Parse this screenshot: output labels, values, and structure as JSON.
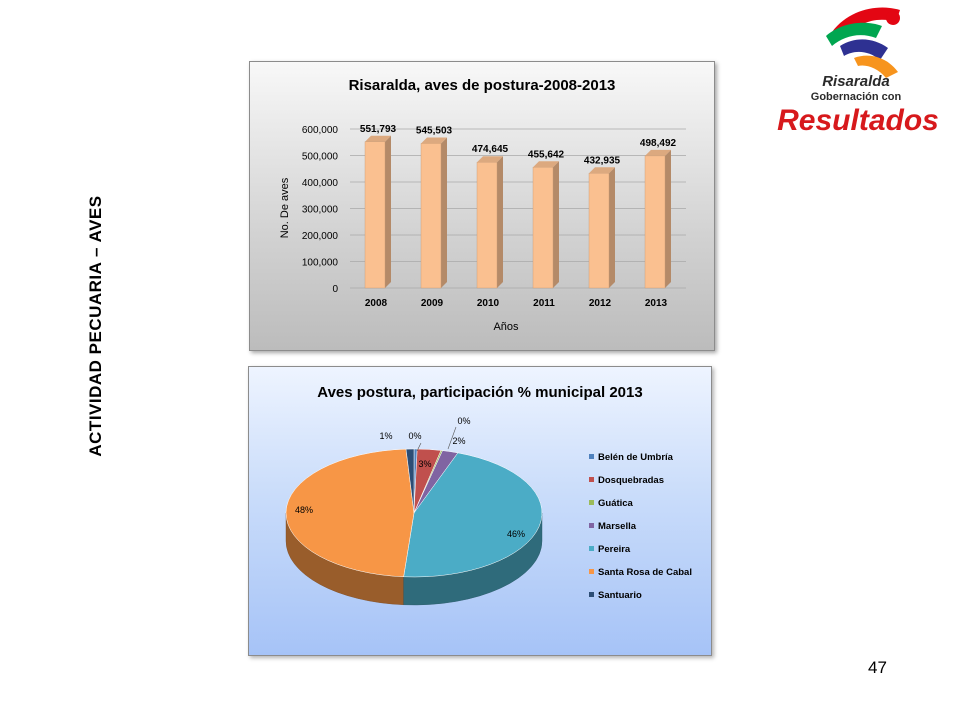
{
  "slide": {
    "vertical_title": "ACTIVIDAD PECUARIA – AVES",
    "page_number": "47",
    "logo": {
      "line1": "Risaralda",
      "line2": "Gobernación con",
      "line3": "Resultados",
      "colors": [
        "#e30613",
        "#00a650",
        "#2e3192",
        "#f7941d"
      ]
    }
  },
  "chart_data": [
    {
      "type": "bar",
      "title": "Risaralda, aves de postura-2008-2013",
      "xlabel": "Años",
      "ylabel": "No. De aves",
      "categories": [
        "2008",
        "2009",
        "2010",
        "2011",
        "2012",
        "2013"
      ],
      "values": [
        551793,
        545503,
        474645,
        455642,
        432935,
        498492
      ],
      "value_labels": [
        "551,793",
        "545,503",
        "474,645",
        "455,642",
        "432,935",
        "498,492"
      ],
      "yticks": [
        "0",
        "100,000",
        "200,000",
        "300,000",
        "400,000",
        "500,000",
        "600,000"
      ],
      "ylim": [
        0,
        600000
      ],
      "grid": true,
      "bar_color": "#fac090",
      "legend": "none"
    },
    {
      "type": "pie",
      "title": "Aves postura, participación % municipal 2013",
      "categories": [
        "Belén de Umbría",
        "Dosquebradas",
        "Guática",
        "Marsella",
        "Pereira",
        "Santa Rosa de Cabal",
        "Santuario"
      ],
      "values": [
        0.4,
        3,
        0.2,
        2,
        46,
        48,
        1
      ],
      "value_labels": [
        "0%",
        "3%",
        "0%",
        "2%",
        "46%",
        "48%",
        "1%"
      ],
      "colors": [
        "#4f81bd",
        "#c0504d",
        "#9bbb59",
        "#8064a2",
        "#4bacc6",
        "#f79646",
        "#2c4d75"
      ],
      "legend": "right"
    }
  ]
}
